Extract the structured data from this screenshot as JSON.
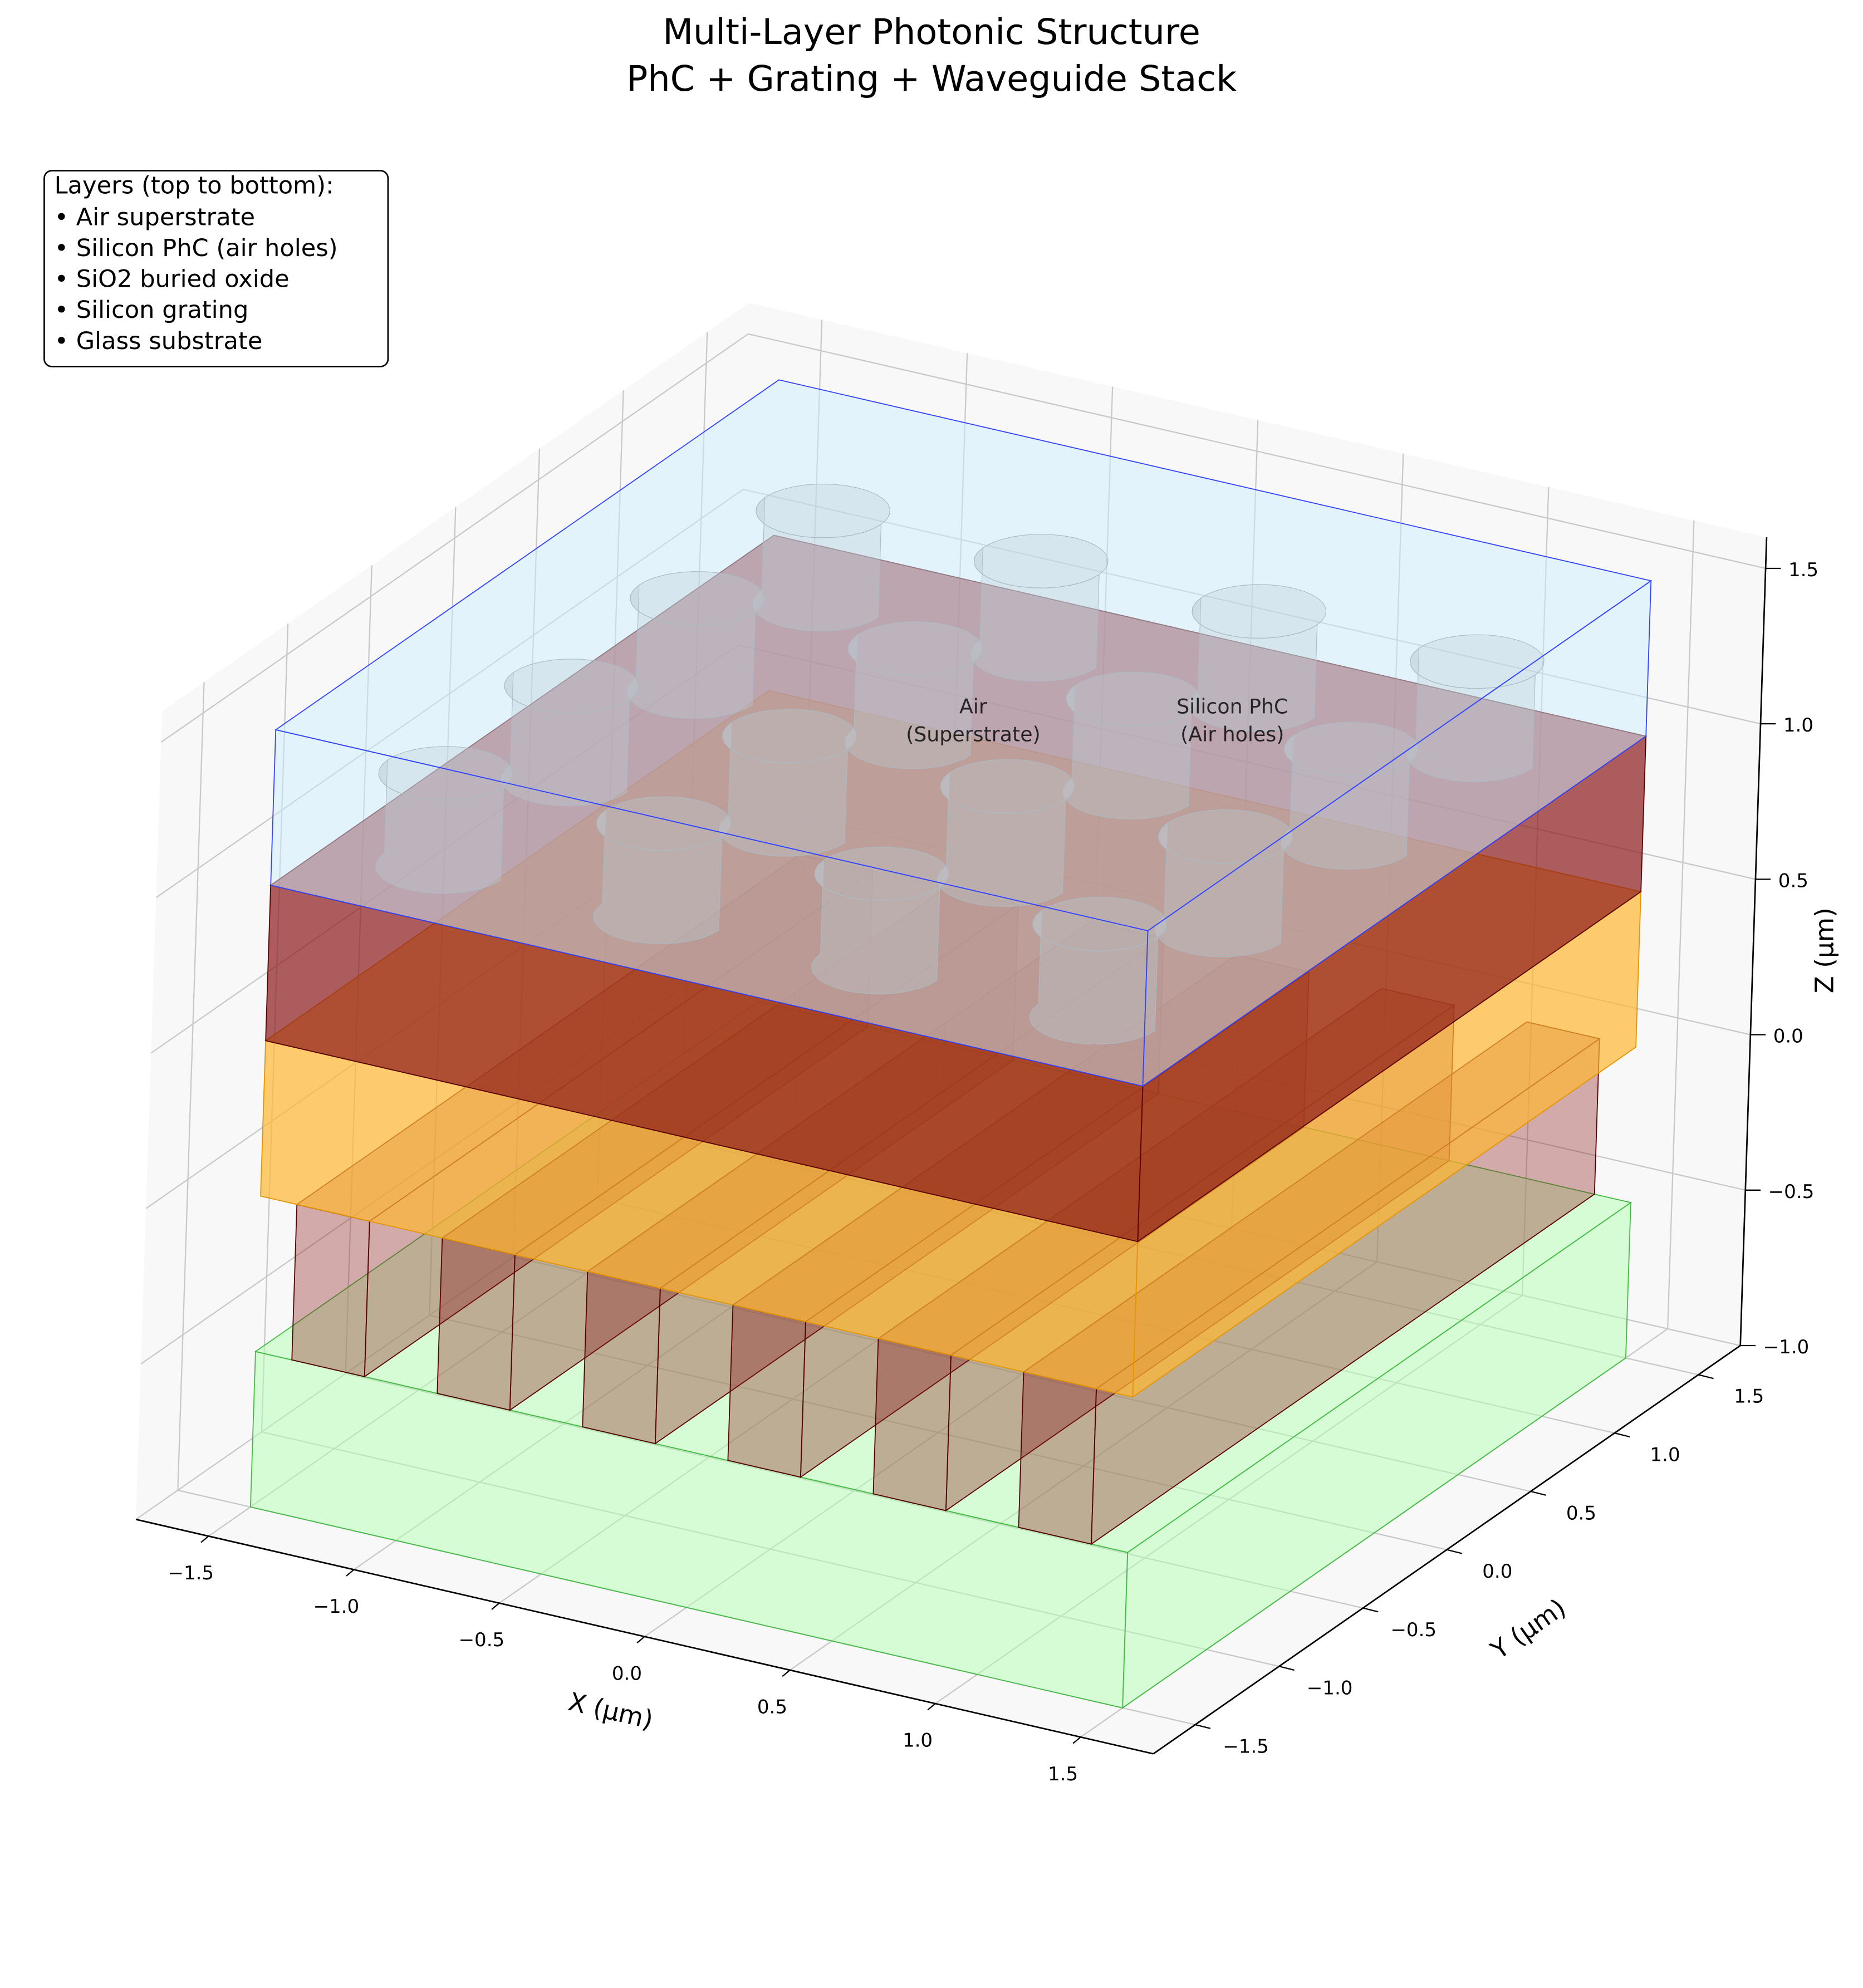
{
  "chart_data": {
    "type": "3d-layers",
    "title": [
      "Multi-Layer Photonic Structure",
      "PhC + Grating + Waveguide Stack"
    ],
    "xlabel": "X (μm)",
    "ylabel": "Y (μm)",
    "zlabel": "Z (μm)",
    "xlim": [
      -1.75,
      1.75
    ],
    "ylim": [
      -1.75,
      1.75
    ],
    "zlim": [
      -1.0,
      1.6
    ],
    "xticks": [
      {
        "value": -1.5,
        "label": "−1.5"
      },
      {
        "value": -1.0,
        "label": "−1.0"
      },
      {
        "value": -0.5,
        "label": "−0.5"
      },
      {
        "value": 0,
        "label": "0.0"
      },
      0.5,
      {
        "value": 1.0,
        "label": "1.0"
      },
      1.5
    ],
    "yticks": [
      {
        "value": -1.5,
        "label": "−1.5"
      },
      {
        "value": -1.0,
        "label": "−1.0"
      },
      {
        "value": -0.5,
        "label": "−0.5"
      },
      {
        "value": 0,
        "label": "0.0"
      },
      0.5,
      {
        "value": 1.0,
        "label": "1.0"
      },
      1.5
    ],
    "zticks": [
      {
        "value": -1.0,
        "label": "−1.0"
      },
      {
        "value": -0.5,
        "label": "−0.5"
      },
      {
        "value": 0,
        "label": "0.0"
      },
      0.5,
      {
        "value": 1.0,
        "label": "1.0"
      },
      1.5
    ],
    "grid": true,
    "legend": {
      "title": "Layers (top to bottom):",
      "items": [
        "• Air superstrate",
        "• Silicon PhC (air holes)",
        "• SiO2 buried oxide",
        "• Silicon grating",
        "• Glass substrate"
      ]
    },
    "annotations": [
      {
        "lines": [
          "Air",
          "(Superstrate)"
        ]
      },
      {
        "lines": [
          "Silicon PhC",
          "(Air holes)"
        ]
      }
    ],
    "extent": [
      -1.5,
      1.5
    ],
    "layers": [
      {
        "color": "#b3ffb3",
        "edgecolor": "#44bb44",
        "opacity": 0.5,
        "z": [
          -1.0,
          -0.5
        ]
      },
      {
        "color": "#ffb732",
        "edgecolor": "#e69500",
        "opacity": 0.7,
        "z": [
          0.0,
          0.5
        ]
      },
      {
        "color": "#8b1a1a",
        "edgecolor": "#5a0000",
        "opacity": 0.7,
        "z": [
          0.5,
          1.0
        ]
      },
      {
        "color": "#cceeff",
        "edgecolor": "#3344ff",
        "opacity": 0.5,
        "z": [
          1.0,
          1.5
        ]
      }
    ],
    "grating": {
      "color": "#8b1a1a",
      "opacity": 0.35,
      "z": [
        -0.5,
        0.0
      ],
      "x_centers": [
        -1.25,
        -0.75,
        -0.25,
        0.25,
        0.75,
        1.25
      ],
      "width": 0.25
    },
    "holes": {
      "color": "#b0b0b0",
      "opacity": 0.35,
      "z": [
        1.0,
        1.3
      ],
      "x": [
        -1.125,
        -0.375,
        0.375,
        1.125
      ],
      "y": [
        -1.125,
        -0.375,
        0.375,
        1.125
      ],
      "radius": 0.2
    }
  }
}
